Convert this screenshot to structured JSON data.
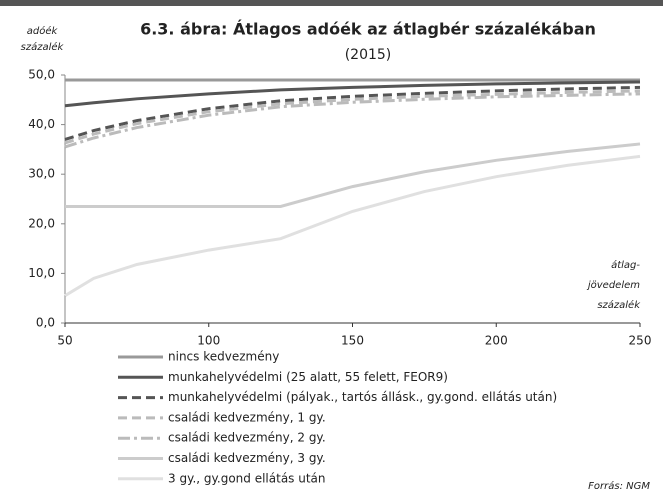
{
  "chart_data": {
    "type": "line",
    "title": "6.3. ábra: Átlagos adóék az átlagbér százalékában",
    "subtitle": "(2015)",
    "y_label": [
      "adóék",
      "százalék"
    ],
    "x_label": [
      "átlag-",
      "jövedelem",
      "százalék"
    ],
    "source": "Forrás: NGM",
    "x": [
      50,
      60,
      75,
      100,
      125,
      150,
      175,
      200,
      225,
      250
    ],
    "xlim": [
      50,
      250
    ],
    "xticks": [
      50,
      100,
      150,
      200,
      250
    ],
    "ylim": [
      0,
      50
    ],
    "yticks": [
      {
        "value": 0,
        "label": "0,0"
      },
      {
        "value": 10,
        "label": "10,0"
      },
      {
        "value": 20,
        "label": "20,0"
      },
      {
        "value": 30,
        "label": "30,0"
      },
      {
        "value": 40,
        "label": "40,0"
      },
      {
        "value": 50,
        "label": "50,0"
      }
    ],
    "series": [
      {
        "name": "nincs kedvezmény",
        "color": "#999999",
        "style": "solid",
        "values": [
          49,
          49,
          49,
          49,
          49,
          49,
          49,
          49,
          49,
          49
        ]
      },
      {
        "name": "munkahelyvédelmi (25 alatt, 55 felett, FEOR9)",
        "color": "#555555",
        "style": "solid",
        "values": [
          43.8,
          44.4,
          45.2,
          46.2,
          47,
          47.5,
          47.9,
          48.2,
          48.4,
          48.6
        ]
      },
      {
        "name": "munkahelyvédelmi (pályak., tartós állásk., gy.gond. ellátás után)",
        "color": "#555555",
        "style": "dashed",
        "values": [
          37,
          38.8,
          40.8,
          43.2,
          44.8,
          45.7,
          46.3,
          46.8,
          47.2,
          47.5
        ]
      },
      {
        "name": "családi kedvezmény, 1 gy.",
        "color": "#bbbbbb",
        "style": "dashed",
        "values": [
          36.3,
          38.1,
          40.2,
          42.6,
          44.2,
          45.1,
          45.7,
          46.1,
          46.5,
          46.8
        ]
      },
      {
        "name": "családi kedvezmény, 2 gy.",
        "color": "#bbbbbb",
        "style": "dashdot",
        "values": [
          35.5,
          37.3,
          39.4,
          41.9,
          43.6,
          44.5,
          45.1,
          45.6,
          45.9,
          46.2
        ]
      },
      {
        "name": "családi kedvezmény, 3 gy.",
        "color": "#cccccc",
        "style": "solid",
        "values": [
          23.5,
          23.5,
          23.5,
          23.5,
          23.5,
          27.5,
          30.5,
          32.8,
          34.6,
          36.1
        ]
      },
      {
        "name": "3 gy., gy.gond ellátás után",
        "color": "#e0e0e0",
        "style": "solid",
        "values": [
          5.5,
          9,
          11.8,
          14.7,
          17,
          22.5,
          26.5,
          29.5,
          31.8,
          33.6
        ]
      }
    ]
  }
}
